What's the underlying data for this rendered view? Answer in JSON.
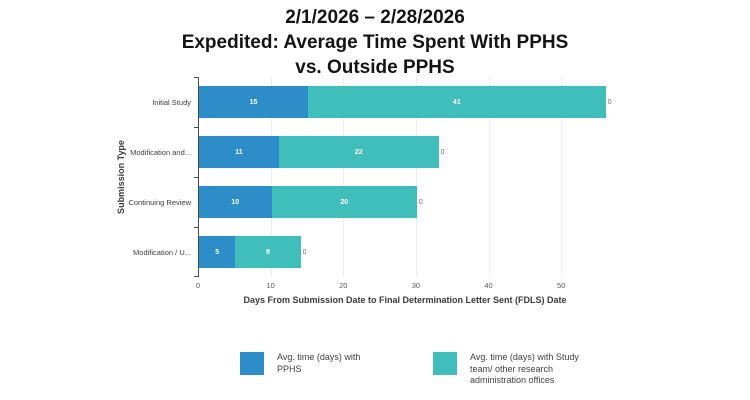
{
  "title": {
    "line1": "2/1/2026 – 2/28/2026",
    "line2": "Expedited: Average Time Spent With PPHS",
    "line3": "vs. Outside PPHS"
  },
  "chart_data": {
    "type": "bar",
    "orientation": "horizontal",
    "stacked": true,
    "title": "2/1/2026 – 2/28/2026 Expedited: Average Time Spent With PPHS vs. Outside PPHS",
    "categories": [
      "Initial Study",
      "Modification and...",
      "Continuing Review",
      "Modification / U..."
    ],
    "series": [
      {
        "name": "Avg. time (days) with PPHS",
        "color": "#2D8DC8",
        "values": [
          15,
          11,
          10,
          5
        ]
      },
      {
        "name": "Avg. time (days) with Study team/ other research administration offices",
        "color": "#3FBEBB",
        "values": [
          41,
          22,
          20,
          9
        ]
      }
    ],
    "bar_end_labels": [
      "0",
      "0",
      "0",
      "0"
    ],
    "xlabel": "Days From Submission Date to Final Determination Letter Sent (FDLS) Date",
    "ylabel": "Submission Type",
    "xlim": [
      0,
      57
    ],
    "xticks": [
      0,
      10,
      20,
      30,
      40,
      50
    ],
    "grid": "vertical",
    "legend_position": "bottom"
  },
  "colors": {
    "pphs_blue": "#2D8DC8",
    "outside_teal": "#3FBEBB",
    "gridline": "#EDEDED",
    "axis": "#4A4A4A"
  }
}
